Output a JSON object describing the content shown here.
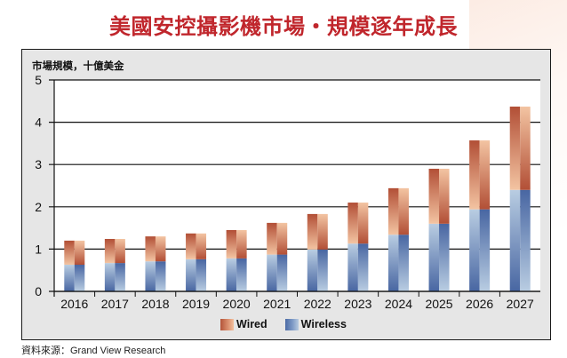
{
  "header": {
    "title": "美國安控攝影機市場・規模逐年成長"
  },
  "footer": {
    "source": "資料來源：Grand View Research"
  },
  "chart_data": {
    "type": "bar",
    "stacked": true,
    "title": "美國安控攝影機市場・規模逐年成長",
    "ylabel": "市場規模，十億美金",
    "xlabel": "",
    "ylim": [
      0,
      5
    ],
    "yticks": [
      0,
      1,
      2,
      3,
      4,
      5
    ],
    "grid": true,
    "legend_position": "bottom-center",
    "categories": [
      "2016",
      "2017",
      "2018",
      "2019",
      "2020",
      "2021",
      "2022",
      "2023",
      "2024",
      "2025",
      "2026",
      "2027"
    ],
    "series": [
      {
        "name": "Wireless",
        "color": "#4a6aa5",
        "values": [
          0.63,
          0.67,
          0.71,
          0.76,
          0.78,
          0.87,
          0.99,
          1.13,
          1.34,
          1.6,
          1.94,
          2.4
        ]
      },
      {
        "name": "Wired",
        "color": "#b4543a",
        "values": [
          0.57,
          0.57,
          0.59,
          0.61,
          0.67,
          0.75,
          0.84,
          0.97,
          1.1,
          1.3,
          1.63,
          1.97
        ]
      }
    ],
    "totals": [
      1.2,
      1.24,
      1.3,
      1.37,
      1.45,
      1.62,
      1.83,
      2.1,
      2.44,
      2.9,
      3.57,
      4.37
    ]
  },
  "legend": {
    "items": [
      {
        "label": "Wired",
        "color": "#b4543a"
      },
      {
        "label": "Wireless",
        "color": "#4a6aa5"
      }
    ]
  }
}
